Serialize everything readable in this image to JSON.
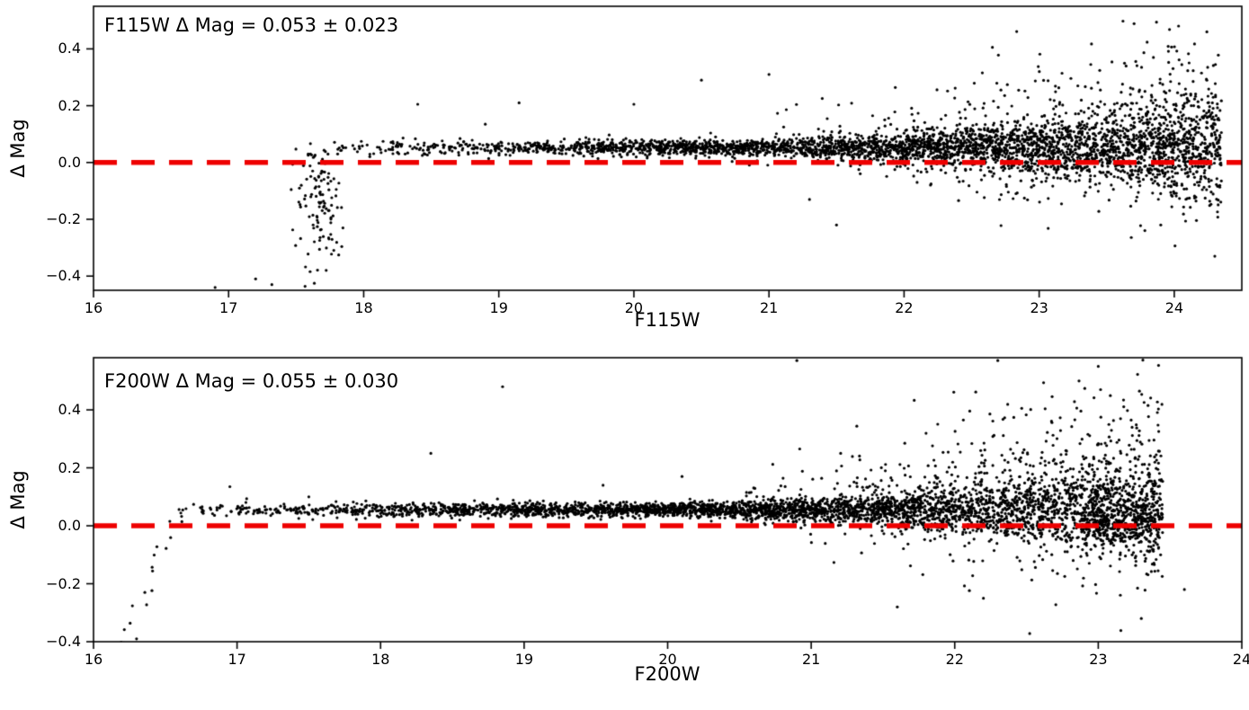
{
  "figure": {
    "background": "#ffffff",
    "point_color": "#000000",
    "hline_color": "#ee0000"
  },
  "chart_data": [
    {
      "type": "scatter",
      "annotation": "F115W Δ Mag = 0.053 ± 0.023",
      "delta_mag_mean": 0.053,
      "delta_mag_err": 0.023,
      "xlabel": "F115W",
      "ylabel": "Δ Mag",
      "xlim": [
        16,
        24.5
      ],
      "ylim": [
        -0.45,
        0.55
      ],
      "xticks": [
        16,
        17,
        18,
        19,
        20,
        21,
        22,
        23,
        24
      ],
      "yticks": [
        -0.4,
        -0.2,
        0.0,
        0.2,
        0.4
      ],
      "hline": 0.0,
      "grid": false,
      "legend": "none",
      "point_model": {
        "seed": 7,
        "band": {
          "n": 4000,
          "x_min": 17.45,
          "x_max": 24.35,
          "x_power": 0.45,
          "offset": 0.053,
          "sigma_base": 0.013,
          "sigma_knee": 20.3,
          "sigma_coeff": 0.0048,
          "tail_onset": 20.8,
          "pos_tail_frac": 0.1,
          "pos_tail_scale": 0.13,
          "neg_tail_frac": 0.05,
          "neg_tail_scale": 0.09
        },
        "saturated_cluster": {
          "n": 115,
          "x_center": 17.67,
          "x_sigma": 0.09,
          "y_center": -0.13,
          "y_sigma": 0.1,
          "y_min": -0.44,
          "y_max": 0.03
        },
        "outliers": [
          [
            16.9,
            -0.44
          ],
          [
            17.2,
            -0.41
          ],
          [
            17.32,
            -0.43
          ],
          [
            18.4,
            0.205
          ],
          [
            19.15,
            0.21
          ],
          [
            20.0,
            0.205
          ],
          [
            18.9,
            0.135
          ],
          [
            20.5,
            0.29
          ],
          [
            21.0,
            0.31
          ],
          [
            21.3,
            -0.13
          ],
          [
            21.5,
            -0.22
          ],
          [
            23.9,
            -0.22
          ],
          [
            24.1,
            -0.05
          ],
          [
            24.2,
            0.1
          ],
          [
            24.3,
            -0.33
          ]
        ]
      }
    },
    {
      "type": "scatter",
      "annotation": "F200W Δ Mag = 0.055 ± 0.030",
      "delta_mag_mean": 0.055,
      "delta_mag_err": 0.03,
      "xlabel": "F200W",
      "ylabel": "Δ Mag",
      "xlim": [
        16,
        24
      ],
      "ylim": [
        -0.4,
        0.58
      ],
      "xticks": [
        16,
        17,
        18,
        19,
        20,
        21,
        22,
        23,
        24
      ],
      "yticks": [
        -0.4,
        -0.2,
        0.0,
        0.2,
        0.4
      ],
      "hline": 0.0,
      "grid": false,
      "legend": "none",
      "point_model": {
        "seed": 13,
        "band": {
          "n": 4400,
          "x_min": 16.45,
          "x_max": 23.45,
          "x_power": 0.5,
          "offset": 0.055,
          "sigma_base": 0.012,
          "sigma_knee": 19.8,
          "sigma_coeff": 0.006,
          "tail_onset": 20.5,
          "pos_tail_frac": 0.13,
          "pos_tail_scale": 0.16,
          "neg_tail_frac": 0.06,
          "neg_tail_scale": 0.12
        },
        "saturated_trail": {
          "n": 18,
          "x_min": 16.18,
          "x_max": 16.6,
          "y_top": 0.05,
          "y_bottom": -0.42
        },
        "end_cluster": {
          "n": 240,
          "x_min": 22.9,
          "x_max": 23.42,
          "offset": 0.0,
          "sigma": 0.045
        },
        "outliers": [
          [
            16.95,
            0.135
          ],
          [
            17.5,
            0.1
          ],
          [
            18.35,
            0.25
          ],
          [
            18.85,
            0.48
          ],
          [
            19.55,
            0.14
          ],
          [
            20.1,
            0.17
          ],
          [
            20.9,
            0.57
          ],
          [
            22.3,
            0.57
          ],
          [
            23.0,
            0.55
          ],
          [
            21.6,
            -0.28
          ],
          [
            22.2,
            -0.25
          ],
          [
            23.3,
            -0.32
          ],
          [
            23.6,
            -0.22
          ],
          [
            16.3,
            -0.39
          ],
          [
            16.22,
            -0.41
          ]
        ]
      }
    }
  ]
}
